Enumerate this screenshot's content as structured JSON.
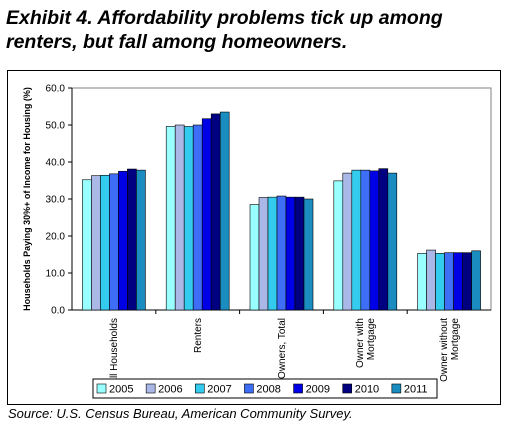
{
  "title_line1": "Exhibit 4. Affordability problems tick up among",
  "title_line2": "renters, but fall among homeowners.",
  "source": "Source: U.S. Census Bureau, American Community Survey.",
  "colors": {
    "2005": "#99ffff",
    "2006": "#aab8e8",
    "2007": "#33ccee",
    "2008": "#3d6ef5",
    "2009": "#0000e6",
    "2010": "#000080",
    "2011": "#1a8cc0"
  },
  "chart_data": {
    "type": "bar",
    "title": "",
    "xlabel": "",
    "ylabel": "Households Paying 30%+ of Income for Housing (%)",
    "ylim": [
      0,
      60
    ],
    "yticks": [
      "0.0",
      "10.0",
      "20.0",
      "30.0",
      "40.0",
      "50.0",
      "60.0"
    ],
    "grid": false,
    "legend": "bottom",
    "categories": [
      "All Households",
      "Renters",
      "Owners, Total",
      "Owner with Mortgage",
      "Owner without Mortgage"
    ],
    "category_lines": [
      [
        "All Households"
      ],
      [
        "Renters"
      ],
      [
        "Owners, Total"
      ],
      [
        "Owner with",
        "Mortgage"
      ],
      [
        "Owner without",
        "Mortgage"
      ]
    ],
    "series": [
      {
        "name": "2005",
        "values": [
          35.2,
          49.6,
          28.5,
          34.9,
          15.3
        ]
      },
      {
        "name": "2006",
        "values": [
          36.3,
          50.0,
          30.4,
          37.0,
          16.2
        ]
      },
      {
        "name": "2007",
        "values": [
          36.4,
          49.6,
          30.5,
          37.8,
          15.3
        ]
      },
      {
        "name": "2008",
        "values": [
          36.8,
          50.0,
          30.8,
          37.8,
          15.5
        ]
      },
      {
        "name": "2009",
        "values": [
          37.5,
          51.7,
          30.5,
          37.6,
          15.5
        ]
      },
      {
        "name": "2010",
        "values": [
          38.1,
          53.0,
          30.5,
          38.2,
          15.5
        ]
      },
      {
        "name": "2011",
        "values": [
          37.8,
          53.5,
          30.0,
          37.0,
          16.0
        ]
      }
    ]
  }
}
